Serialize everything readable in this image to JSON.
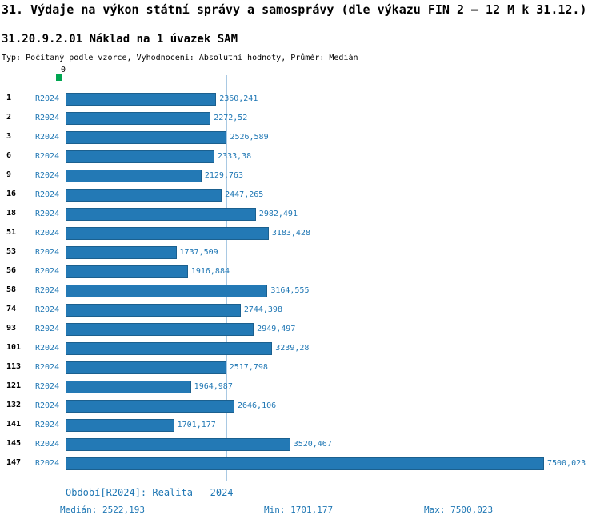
{
  "header": {
    "title": "31. Výdaje na výkon státní správy a samosprávy (dle výkazu FIN 2 – 12 M k 31.12.)",
    "subtitle": "31.20.9.2.01 Náklad na 1 úvazek SAM",
    "meta": "Typ: Počítaný podle vzorce, Vyhodnocení: Absolutní hodnoty, Průměr: Medián"
  },
  "axis": {
    "zero_label": "0"
  },
  "footer": {
    "period": "Období[R2024]: Realita – 2024",
    "median": "Medián: 2522,193",
    "min": "Min: 1701,177",
    "max": "Max: 7500,023"
  },
  "colors": {
    "bar": "#2379b5",
    "bar_border": "#1b608f",
    "accent_text": "#1f77b4",
    "median_line": "#a9c9e3",
    "marker_green": "#00a651"
  },
  "chart_data": {
    "type": "bar",
    "orientation": "horizontal",
    "title": "31.20.9.2.01 Náklad na 1 úvazek SAM",
    "series_label": "R2024",
    "categories": [
      "1",
      "2",
      "3",
      "6",
      "9",
      "16",
      "18",
      "51",
      "53",
      "56",
      "58",
      "74",
      "93",
      "101",
      "113",
      "121",
      "132",
      "141",
      "145",
      "147"
    ],
    "values": [
      2360.241,
      2272.52,
      2526.589,
      2333.38,
      2129.763,
      2447.265,
      2982.491,
      3183.428,
      1737.509,
      1916.884,
      3164.555,
      2744.398,
      2949.497,
      3239.28,
      2517.798,
      1964.987,
      2646.106,
      1701.177,
      3520.467,
      7500.023
    ],
    "value_labels": [
      "2360,241",
      "2272,52",
      "2526,589",
      "2333,38",
      "2129,763",
      "2447,265",
      "2982,491",
      "3183,428",
      "1737,509",
      "1916,884",
      "3164,555",
      "2744,398",
      "2949,497",
      "3239,28",
      "2517,798",
      "1964,987",
      "2646,106",
      "1701,177",
      "3520,467",
      "7500,023"
    ],
    "median": 2522.193,
    "min": 1701.177,
    "max": 7500.023,
    "xlim": [
      0,
      7500.023
    ],
    "grid": false,
    "legend_position": "none"
  }
}
